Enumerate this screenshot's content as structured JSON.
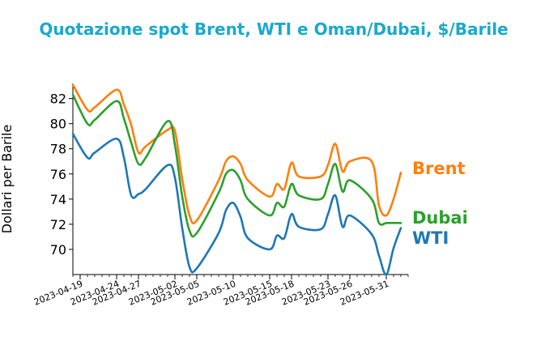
{
  "colors": {
    "title": "#1aa9cc",
    "brent": "#ff7f0e",
    "dubai": "#2ca02c",
    "wti": "#1f77b4"
  },
  "chart_data": {
    "type": "line",
    "title": "Quotazione spot Brent, WTI e Oman/Dubai, $/Barile",
    "ylabel": "Dollari per Barile",
    "xlabel": "",
    "ylim": [
      68.0,
      83.2
    ],
    "xlim": [
      "2023-04-18",
      "2023-06-03"
    ],
    "yticks": [
      70,
      72,
      74,
      76,
      78,
      80,
      82
    ],
    "xticks": [
      "2023-04-19",
      "2023-04-24",
      "2023-04-27",
      "2023-05-02",
      "2023-05-05",
      "2023-05-10",
      "2023-05-15",
      "2023-05-18",
      "2023-05-23",
      "2023-05-26",
      "2023-05-31"
    ],
    "legend": "direct labels at line ends",
    "grid": false,
    "series": [
      {
        "name": "Brent",
        "color": "#ff7f0e",
        "points": [
          [
            "2023-04-18",
            83.1
          ],
          [
            "2023-04-20",
            81.1
          ],
          [
            "2023-04-21",
            81.3
          ],
          [
            "2023-04-24",
            82.7
          ],
          [
            "2023-04-25",
            81.5
          ],
          [
            "2023-04-26",
            79.9
          ],
          [
            "2023-04-27",
            77.7
          ],
          [
            "2023-04-28",
            78.2
          ],
          [
            "2023-05-01",
            79.5
          ],
          [
            "2023-05-02",
            79.4
          ],
          [
            "2023-05-03",
            75.6
          ],
          [
            "2023-05-04",
            72.7
          ],
          [
            "2023-05-05",
            72.3
          ],
          [
            "2023-05-08",
            75.5
          ],
          [
            "2023-05-09",
            77.0
          ],
          [
            "2023-05-10",
            77.4
          ],
          [
            "2023-05-11",
            76.8
          ],
          [
            "2023-05-12",
            75.5
          ],
          [
            "2023-05-15",
            74.2
          ],
          [
            "2023-05-16",
            75.2
          ],
          [
            "2023-05-17",
            74.8
          ],
          [
            "2023-05-18",
            76.9
          ],
          [
            "2023-05-19",
            75.8
          ],
          [
            "2023-05-22",
            75.8
          ],
          [
            "2023-05-23",
            76.7
          ],
          [
            "2023-05-24",
            78.4
          ],
          [
            "2023-05-25",
            76.2
          ],
          [
            "2023-05-26",
            77.0
          ],
          [
            "2023-05-29",
            77.0
          ],
          [
            "2023-05-30",
            73.5
          ],
          [
            "2023-05-31",
            72.7
          ],
          [
            "2023-06-01",
            74.0
          ],
          [
            "2023-06-02",
            76.1
          ]
        ]
      },
      {
        "name": "Dubai",
        "color": "#2ca02c",
        "points": [
          [
            "2023-04-18",
            82.3
          ],
          [
            "2023-04-20",
            80.0
          ],
          [
            "2023-04-21",
            80.3
          ],
          [
            "2023-04-24",
            81.8
          ],
          [
            "2023-04-25",
            80.4
          ],
          [
            "2023-04-26",
            78.5
          ],
          [
            "2023-04-27",
            76.8
          ],
          [
            "2023-04-28",
            77.3
          ],
          [
            "2023-05-01",
            80.2
          ],
          [
            "2023-05-02",
            78.3
          ],
          [
            "2023-05-03",
            74.2
          ],
          [
            "2023-05-04",
            71.5
          ],
          [
            "2023-05-05",
            71.3
          ],
          [
            "2023-05-08",
            74.5
          ],
          [
            "2023-05-09",
            76.0
          ],
          [
            "2023-05-10",
            76.3
          ],
          [
            "2023-05-11",
            75.5
          ],
          [
            "2023-05-12",
            74.0
          ],
          [
            "2023-05-15",
            72.7
          ],
          [
            "2023-05-16",
            73.7
          ],
          [
            "2023-05-17",
            73.4
          ],
          [
            "2023-05-18",
            75.2
          ],
          [
            "2023-05-19",
            74.3
          ],
          [
            "2023-05-22",
            74.0
          ],
          [
            "2023-05-23",
            75.2
          ],
          [
            "2023-05-24",
            76.8
          ],
          [
            "2023-05-25",
            74.6
          ],
          [
            "2023-05-26",
            75.5
          ],
          [
            "2023-05-29",
            74.0
          ],
          [
            "2023-05-30",
            72.1
          ],
          [
            "2023-05-31",
            72.1
          ],
          [
            "2023-06-01",
            72.1
          ],
          [
            "2023-06-02",
            72.1
          ]
        ]
      },
      {
        "name": "WTI",
        "color": "#1f77b4",
        "points": [
          [
            "2023-04-18",
            79.2
          ],
          [
            "2023-04-20",
            77.3
          ],
          [
            "2023-04-21",
            77.7
          ],
          [
            "2023-04-24",
            78.8
          ],
          [
            "2023-04-25",
            77.3
          ],
          [
            "2023-04-26",
            74.3
          ],
          [
            "2023-04-27",
            74.4
          ],
          [
            "2023-04-28",
            74.8
          ],
          [
            "2023-05-01",
            76.7
          ],
          [
            "2023-05-02",
            75.7
          ],
          [
            "2023-05-03",
            71.7
          ],
          [
            "2023-05-04",
            68.6
          ],
          [
            "2023-05-05",
            68.5
          ],
          [
            "2023-05-08",
            71.3
          ],
          [
            "2023-05-09",
            73.1
          ],
          [
            "2023-05-10",
            73.7
          ],
          [
            "2023-05-11",
            72.6
          ],
          [
            "2023-05-12",
            70.9
          ],
          [
            "2023-05-15",
            70.0
          ],
          [
            "2023-05-16",
            71.1
          ],
          [
            "2023-05-17",
            70.9
          ],
          [
            "2023-05-18",
            72.8
          ],
          [
            "2023-05-19",
            71.8
          ],
          [
            "2023-05-22",
            71.6
          ],
          [
            "2023-05-23",
            72.8
          ],
          [
            "2023-05-24",
            74.3
          ],
          [
            "2023-05-25",
            71.8
          ],
          [
            "2023-05-26",
            72.7
          ],
          [
            "2023-05-29",
            71.2
          ],
          [
            "2023-05-30",
            69.5
          ],
          [
            "2023-05-31",
            68.0
          ],
          [
            "2023-06-01",
            70.1
          ],
          [
            "2023-06-02",
            71.7
          ]
        ]
      }
    ]
  }
}
